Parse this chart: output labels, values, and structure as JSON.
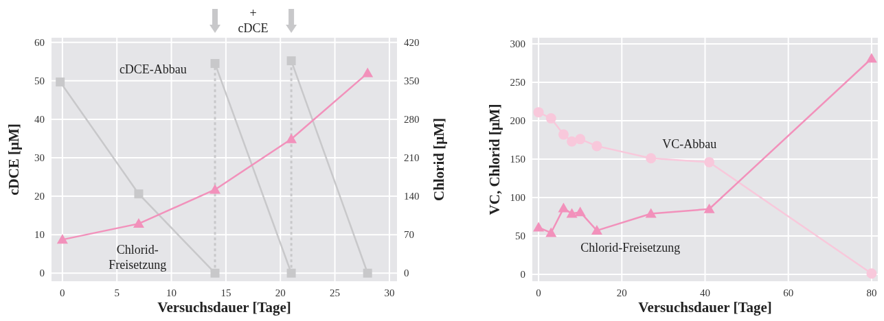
{
  "chart_data": [
    {
      "type": "line",
      "xlabel": "Versuchsdauer [Tage]",
      "ylabel": "cDCE [μM]",
      "y2label": "Chlorid [μM]",
      "xlim": [
        -1,
        30.7
      ],
      "xticks": [
        0,
        5,
        10,
        15,
        20,
        25,
        30
      ],
      "ylim": [
        -2.1,
        61.2
      ],
      "yticks": [
        0,
        10,
        20,
        30,
        40,
        50,
        60
      ],
      "y2lim": [
        -14.7,
        428.4
      ],
      "y2ticks": [
        0,
        70,
        140,
        210,
        280,
        350,
        420
      ],
      "grid": true,
      "annotations": [
        "cDCE-Abbau",
        "Chlorid-\nFreisetzung",
        "+\ncDCE"
      ],
      "series": [
        {
          "color": "#c8c8ca",
          "marker": "square",
          "x": [
            -0.2,
            7,
            14
          ],
          "values": [
            49.7,
            20.6,
            0
          ]
        },
        {
          "color": "#c8c8ca",
          "marker": "square",
          "x": [
            14,
            21
          ],
          "values": [
            54.5,
            0
          ]
        },
        {
          "color": "#c8c8ca",
          "marker": "square",
          "x": [
            21,
            28
          ],
          "values": [
            55.2,
            0
          ]
        },
        {
          "color": "#c8c8ca",
          "marker": "none",
          "line_style": "dotted",
          "x": [
            14,
            14
          ],
          "values": [
            0,
            54.5
          ]
        },
        {
          "color": "#c8c8ca",
          "marker": "none",
          "line_style": "dotted",
          "x": [
            21,
            21
          ],
          "values": [
            0,
            55.2
          ]
        },
        {
          "color": "#f291bb",
          "marker": "triangle",
          "axis": "y2",
          "x": [
            0,
            7,
            14,
            21,
            28
          ],
          "values": [
            61,
            90,
            152,
            244,
            364
          ]
        }
      ]
    },
    {
      "type": "line",
      "xlabel": "Versuchsdauer [Tage]",
      "ylabel": "VC, Chlorid [μM]",
      "xlim": [
        -1.5,
        81.5
      ],
      "xticks": [
        0,
        20,
        40,
        60,
        80
      ],
      "ylim": [
        -9,
        308
      ],
      "yticks": [
        0,
        50,
        100,
        150,
        200,
        250,
        300
      ],
      "grid": true,
      "annotations": [
        "VC-Abbau",
        "Chlorid-Freisetzung"
      ],
      "series": [
        {
          "color": "#f8c8db",
          "marker": "circle",
          "x": [
            0,
            3,
            6,
            8,
            10,
            14,
            27,
            41,
            80
          ],
          "values": [
            211,
            203,
            182,
            173,
            176,
            167,
            151,
            146,
            1
          ]
        },
        {
          "color": "#f291bb",
          "marker": "triangle",
          "x": [
            0,
            3,
            6,
            8,
            10,
            14,
            27,
            41,
            80
          ],
          "values": [
            61,
            54,
            86,
            79,
            81,
            57,
            79,
            85,
            281
          ]
        }
      ]
    }
  ]
}
